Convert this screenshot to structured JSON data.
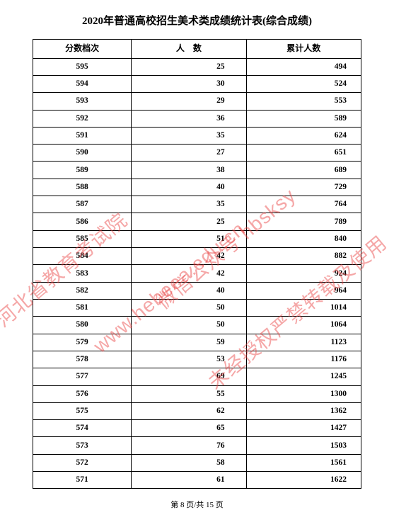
{
  "title": "2020年普通高校招生美术类成绩统计表(综合成绩)",
  "columns": [
    "分数档次",
    "人　数",
    "累计人数"
  ],
  "rows": [
    {
      "score": "595",
      "count": "25",
      "cum": "494"
    },
    {
      "score": "594",
      "count": "30",
      "cum": "524"
    },
    {
      "score": "593",
      "count": "29",
      "cum": "553"
    },
    {
      "score": "592",
      "count": "36",
      "cum": "589"
    },
    {
      "score": "591",
      "count": "35",
      "cum": "624"
    },
    {
      "score": "590",
      "count": "27",
      "cum": "651"
    },
    {
      "score": "589",
      "count": "38",
      "cum": "689"
    },
    {
      "score": "588",
      "count": "40",
      "cum": "729"
    },
    {
      "score": "587",
      "count": "35",
      "cum": "764"
    },
    {
      "score": "586",
      "count": "25",
      "cum": "789"
    },
    {
      "score": "585",
      "count": "51",
      "cum": "840"
    },
    {
      "score": "584",
      "count": "42",
      "cum": "882"
    },
    {
      "score": "583",
      "count": "42",
      "cum": "924"
    },
    {
      "score": "582",
      "count": "40",
      "cum": "964"
    },
    {
      "score": "581",
      "count": "50",
      "cum": "1014"
    },
    {
      "score": "580",
      "count": "50",
      "cum": "1064"
    },
    {
      "score": "579",
      "count": "59",
      "cum": "1123"
    },
    {
      "score": "578",
      "count": "53",
      "cum": "1176"
    },
    {
      "score": "577",
      "count": "69",
      "cum": "1245"
    },
    {
      "score": "576",
      "count": "55",
      "cum": "1300"
    },
    {
      "score": "575",
      "count": "62",
      "cum": "1362"
    },
    {
      "score": "574",
      "count": "65",
      "cum": "1427"
    },
    {
      "score": "573",
      "count": "76",
      "cum": "1503"
    },
    {
      "score": "572",
      "count": "58",
      "cum": "1561"
    },
    {
      "score": "571",
      "count": "61",
      "cum": "1622"
    }
  ],
  "footer": "第 8 页/共 15 页",
  "watermarks": {
    "w1": "河北省教育考试院",
    "w2": "www.hebeea.edu.cn",
    "w3": "微信公众号 hbsksy",
    "w4": "未经授权严禁转载及使用",
    "w5": ""
  },
  "styling": {
    "page_bg": "#ffffff",
    "border_color": "#000000",
    "text_color": "#000000",
    "watermark_color": "rgba(232,60,60,0.45)",
    "title_fontsize": 15,
    "cell_fontsize": 11.5,
    "header_fontsize": 12,
    "footer_fontsize": 11,
    "rotation_deg": -40
  }
}
